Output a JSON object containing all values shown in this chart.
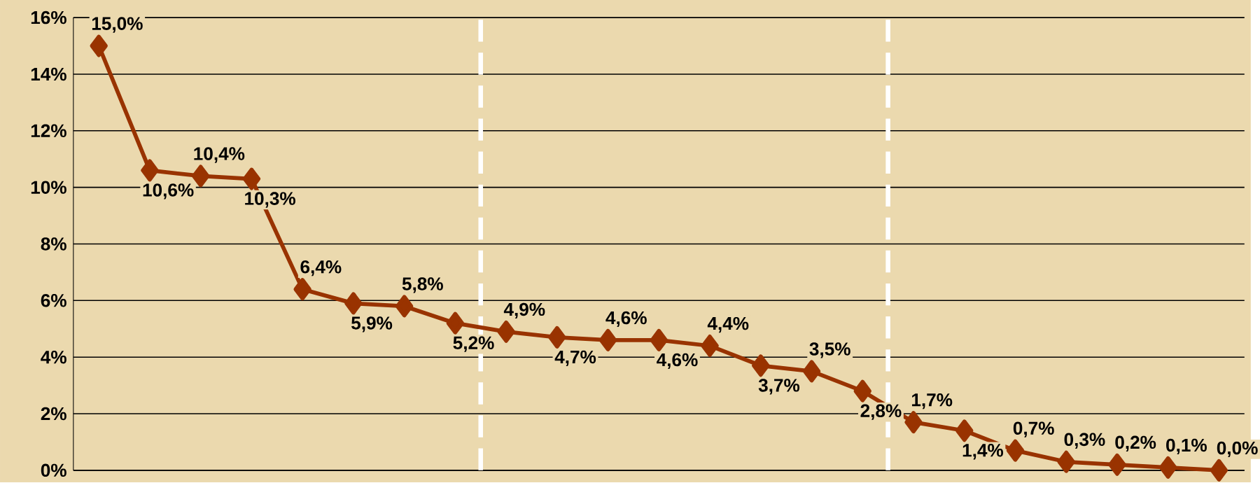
{
  "chart_data": {
    "type": "line",
    "categories": [
      null,
      null,
      null,
      null,
      null,
      null,
      null,
      null,
      null,
      null,
      null,
      null,
      null,
      null,
      null,
      null,
      null,
      null,
      null,
      null,
      null,
      null,
      null
    ],
    "values": [
      15.0,
      10.6,
      10.4,
      10.3,
      6.4,
      5.9,
      5.8,
      5.2,
      4.9,
      4.7,
      4.6,
      4.6,
      4.4,
      3.7,
      3.5,
      2.8,
      1.7,
      1.4,
      0.7,
      0.3,
      0.2,
      0.1,
      0.0
    ],
    "value_labels": [
      "15,0%",
      "10,6%",
      "10,4%",
      "10,3%",
      "6,4%",
      "5,9%",
      "5,8%",
      "5,2%",
      "4,9%",
      "4,7%",
      "4,6%",
      "4,6%",
      "4,4%",
      "3,7%",
      "3,5%",
      "2,8%",
      "1,7%",
      "1,4%",
      "0,7%",
      "0,3%",
      "0,2%",
      "0,1%",
      "0,0%"
    ],
    "color": "#993300",
    "marker": "diamond",
    "grid": "y",
    "tick_labels": "y",
    "ylim": [
      0,
      16
    ],
    "yticks": [
      {
        "value": 0,
        "label": "0%"
      },
      {
        "value": 2,
        "label": "2%"
      },
      {
        "value": 4,
        "label": "4%"
      },
      {
        "value": 6,
        "label": "6%"
      },
      {
        "value": 8,
        "label": "8%"
      },
      {
        "value": 10,
        "label": "10%"
      },
      {
        "value": 12,
        "label": "12%"
      },
      {
        "value": 14,
        "label": "14%"
      },
      {
        "value": 16,
        "label": "16%"
      }
    ]
  }
}
